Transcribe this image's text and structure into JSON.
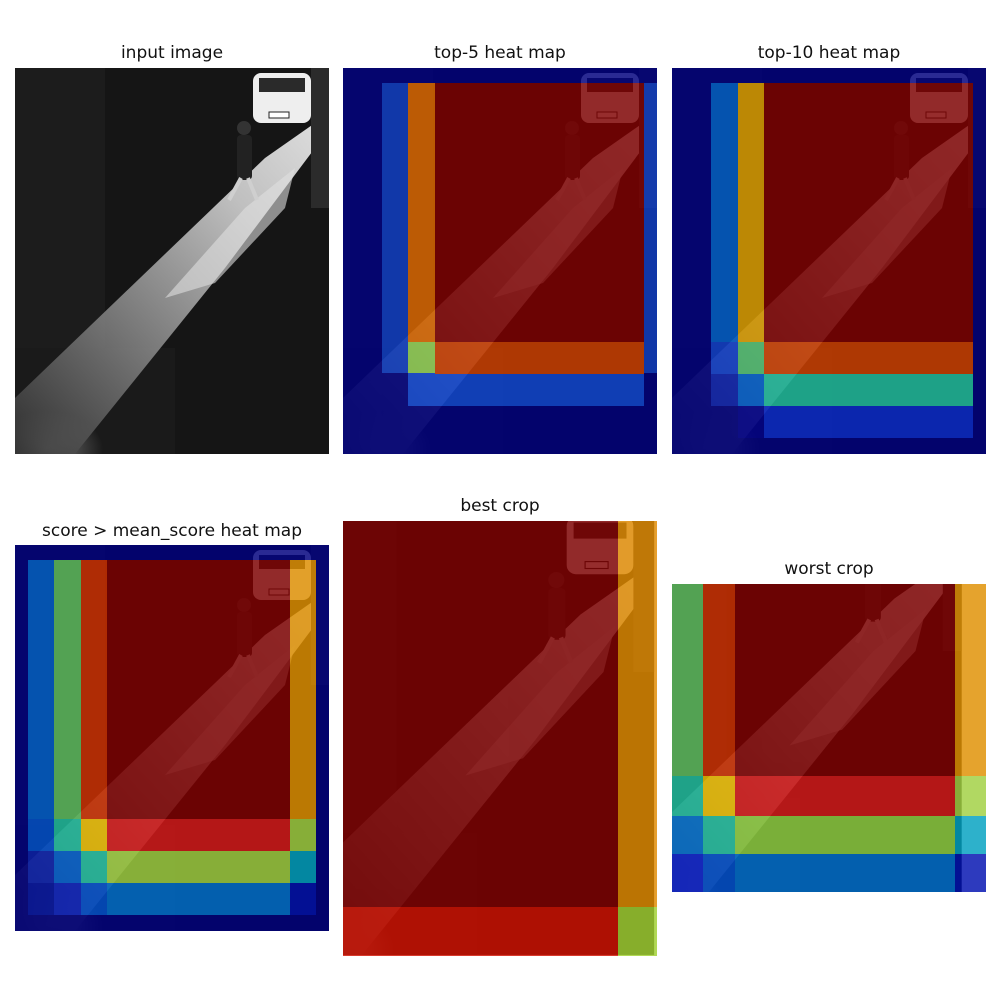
{
  "panels": {
    "input": {
      "title": "input image"
    },
    "top5": {
      "title": "top-5 heat map"
    },
    "top10": {
      "title": "top-10 heat map"
    },
    "mean": {
      "title": "score > mean_score heat map"
    },
    "best": {
      "title": "best crop"
    },
    "worst": {
      "title": "worst crop"
    }
  },
  "colors": {
    "jet_dark_red": "#7f0000",
    "jet_red": "#d42000",
    "jet_orange": "#ff8000",
    "jet_yellow": "#f0d000",
    "jet_light_green": "#a0d040",
    "jet_green": "#60c060",
    "jet_teal": "#20c0a0",
    "jet_cyan": "#00a0c0",
    "jet_blue": "#0060d0",
    "jet_dark_blue": "#000080"
  }
}
